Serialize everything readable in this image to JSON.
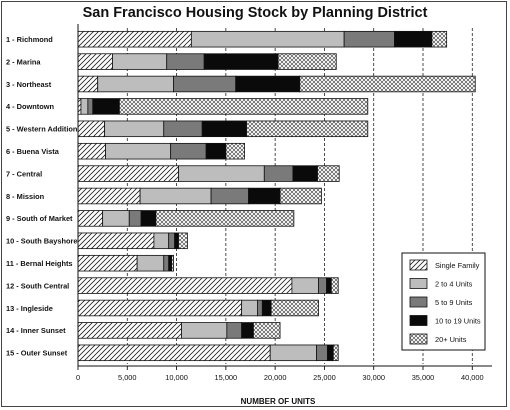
{
  "chart_data": {
    "type": "bar",
    "orientation": "horizontal",
    "stacked": true,
    "title": "San Francisco Housing Stock by Planning District",
    "xlabel": "NUMBER OF UNITS",
    "ylabel": "",
    "xlim": [
      0,
      42000
    ],
    "xticks": [
      0,
      5000,
      10000,
      15000,
      20000,
      25000,
      30000,
      35000,
      40000
    ],
    "xtick_labels": [
      "0",
      "5,000",
      "10,000",
      "15,000",
      "20,000",
      "25,000",
      "30,000",
      "35,000",
      "40,000"
    ],
    "grid": "vertical dashed gridlines",
    "legend_position": "right",
    "categories": [
      "1 - Richmond",
      "2 - Marina",
      "3 - Northeast",
      "4 - Downtown",
      "5 - Western Addition",
      "6 - Buena Vista",
      "7 - Central",
      "8 - Mission",
      "9 - South of Market",
      "10 - South Bayshore",
      "11 - Bernal Heights",
      "12 - South Central",
      "13 - Ingleside",
      "14 - Inner Sunset",
      "15 - Outer Sunset"
    ],
    "series": [
      {
        "name": "Single Family",
        "pattern": "hatch",
        "fill": "#ffffff",
        "values": [
          11500,
          3500,
          2000,
          300,
          2700,
          2800,
          10200,
          6300,
          2500,
          7700,
          6000,
          21700,
          16600,
          10500,
          19500
        ]
      },
      {
        "name": "2 to 4 Units",
        "pattern": "solid",
        "fill": "#bdbdbd",
        "values": [
          15500,
          5500,
          7700,
          700,
          6000,
          6600,
          8700,
          7200,
          2700,
          1500,
          2700,
          2700,
          1600,
          4600,
          4700
        ]
      },
      {
        "name": "5 to 9 Units",
        "pattern": "solid",
        "fill": "#7a7a7a",
        "values": [
          5100,
          3800,
          6300,
          500,
          3900,
          3600,
          2900,
          3800,
          1200,
          600,
          500,
          800,
          500,
          1500,
          1100
        ]
      },
      {
        "name": "10 to 19 Units",
        "pattern": "solid",
        "fill": "#0a0a0a",
        "values": [
          3800,
          7500,
          6500,
          2700,
          4500,
          2000,
          2500,
          3200,
          1500,
          400,
          300,
          500,
          900,
          1200,
          600
        ]
      },
      {
        "name": "20+ Units",
        "pattern": "crosshatch",
        "fill": "#ffffff",
        "values": [
          1500,
          5900,
          17800,
          25200,
          12300,
          1900,
          2200,
          4200,
          14000,
          900,
          200,
          700,
          4800,
          2700,
          500
        ]
      }
    ]
  }
}
